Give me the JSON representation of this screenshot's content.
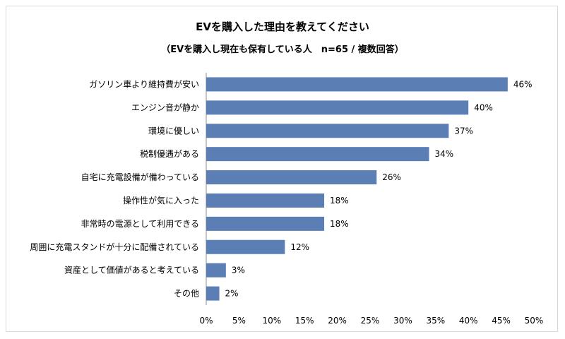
{
  "title": "EVを購入した理由を教えてください",
  "subtitle": "（EVを購入し現在も保有している人　n=65 / 複数回答）",
  "chart_data": {
    "type": "bar",
    "orientation": "horizontal",
    "categories": [
      "ガソリン車より維持費が安い",
      "エンジン音が静か",
      "環境に優しい",
      "税制優遇がある",
      "自宅に充電設備が備わっている",
      "操作性が気に入った",
      "非常時の電源として利用できる",
      "周囲に充電スタンドが十分に配備されている",
      "資産として価値があると考えている",
      "その他"
    ],
    "values": [
      46,
      40,
      37,
      34,
      26,
      18,
      18,
      12,
      3,
      2
    ],
    "value_labels": [
      "46%",
      "40%",
      "37%",
      "34%",
      "26%",
      "18%",
      "18%",
      "12%",
      "3%",
      "2%"
    ],
    "xlim": [
      0,
      50
    ],
    "x_ticks": [
      "0%",
      "5%",
      "10%",
      "15%",
      "20%",
      "25%",
      "30%",
      "35%",
      "40%",
      "45%",
      "50%"
    ],
    "bar_color": "#5b7fb5",
    "grid": false,
    "legend": "none"
  }
}
